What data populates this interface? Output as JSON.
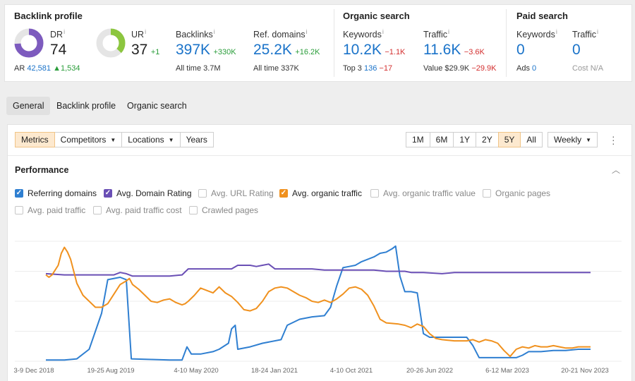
{
  "summary": {
    "backlink_profile": {
      "title": "Backlink profile",
      "dr": {
        "label": "DR",
        "sup": "i",
        "value": "74",
        "fraction": 0.74,
        "color": "#7d5bbe"
      },
      "ar": {
        "label": "AR",
        "value": "42,581",
        "delta": "▲1,534"
      },
      "ur": {
        "label": "UR",
        "sup": "i",
        "value": "37",
        "delta": "+1",
        "fraction": 0.37,
        "color": "#8cc63f"
      },
      "backlinks": {
        "label": "Backlinks",
        "sup": "i",
        "value": "397K",
        "delta": "+330K",
        "alltime_label": "All time",
        "alltime_value": "3.7M"
      },
      "ref_domains": {
        "label": "Ref. domains",
        "sup": "i",
        "value": "25.2K",
        "delta": "+16.2K",
        "alltime_label": "All time",
        "alltime_value": "337K"
      }
    },
    "organic_search": {
      "title": "Organic search",
      "keywords": {
        "label": "Keywords",
        "sup": "i",
        "value": "10.2K",
        "delta": "−1.1K",
        "top3_label": "Top 3",
        "top3_value": "136",
        "top3_delta": "−17"
      },
      "traffic": {
        "label": "Traffic",
        "sup": "i",
        "value": "11.6K",
        "delta": "−3.6K",
        "value_label": "Value",
        "value_value": "$29.9K",
        "value_delta": "−29.9K"
      }
    },
    "paid_search": {
      "title": "Paid search",
      "keywords": {
        "label": "Keywords",
        "sup": "i",
        "value": "0",
        "ads_label": "Ads",
        "ads_value": "0"
      },
      "traffic": {
        "label": "Traffic",
        "sup": "i",
        "value": "0",
        "cost_label": "Cost",
        "cost_value": "N/A"
      }
    }
  },
  "tabs": [
    {
      "label": "General",
      "active": true
    },
    {
      "label": "Backlink profile",
      "active": false
    },
    {
      "label": "Organic search",
      "active": false
    }
  ],
  "toolbar": {
    "left": [
      {
        "label": "Metrics",
        "active": true,
        "dropdown": false
      },
      {
        "label": "Competitors",
        "active": false,
        "dropdown": true
      },
      {
        "label": "Locations",
        "active": false,
        "dropdown": true
      },
      {
        "label": "Years",
        "active": false,
        "dropdown": false
      }
    ],
    "ranges": [
      {
        "label": "1M",
        "active": false
      },
      {
        "label": "6M",
        "active": false
      },
      {
        "label": "1Y",
        "active": false
      },
      {
        "label": "2Y",
        "active": false
      },
      {
        "label": "5Y",
        "active": true
      },
      {
        "label": "All",
        "active": false
      }
    ],
    "interval": "Weekly"
  },
  "performance": {
    "title": "Performance",
    "checkboxes": [
      {
        "label": "Referring domains",
        "checked": true,
        "color": "#2f7fd1"
      },
      {
        "label": "Avg. Domain Rating",
        "checked": true,
        "color": "#6a4fb5"
      },
      {
        "label": "Avg. URL Rating",
        "checked": false
      },
      {
        "label": "Avg. organic traffic",
        "checked": true,
        "color": "#f0911e"
      },
      {
        "label": "Avg. organic traffic value",
        "checked": false
      },
      {
        "label": "Organic pages",
        "checked": false
      },
      {
        "label": "Avg. paid traffic",
        "checked": false
      },
      {
        "label": "Avg. paid traffic cost",
        "checked": false
      },
      {
        "label": "Crawled pages",
        "checked": false
      }
    ]
  },
  "chart_data": {
    "type": "line",
    "x_tick_labels": [
      "3-9 Dec 2018",
      "19-25 Aug 2019",
      "4-10 May 2020",
      "18-24 Jan 2021",
      "4-10 Oct 2021",
      "20-26 Jun 2022",
      "6-12 Mar 2023",
      "20-21 Nov 2023"
    ],
    "y_range": [
      0,
      100
    ],
    "grid": true,
    "series": [
      {
        "name": "Referring domains",
        "color": "#2f7fd1",
        "points": [
          [
            0,
            1
          ],
          [
            3,
            1
          ],
          [
            5,
            2
          ],
          [
            7,
            10
          ],
          [
            9,
            40
          ],
          [
            10,
            68
          ],
          [
            12,
            70
          ],
          [
            13,
            68
          ],
          [
            13.8,
            2
          ],
          [
            20,
            1
          ],
          [
            22,
            1
          ],
          [
            22.8,
            12
          ],
          [
            23.5,
            6
          ],
          [
            25,
            6
          ],
          [
            27,
            8
          ],
          [
            28,
            10
          ],
          [
            29.5,
            15
          ],
          [
            30,
            27
          ],
          [
            30.6,
            30
          ],
          [
            31,
            10
          ],
          [
            33,
            12
          ],
          [
            35,
            15
          ],
          [
            38,
            18
          ],
          [
            39,
            30
          ],
          [
            41,
            35
          ],
          [
            43,
            37
          ],
          [
            45,
            38
          ],
          [
            46,
            45
          ],
          [
            47,
            63
          ],
          [
            48,
            78
          ],
          [
            49,
            79
          ],
          [
            50,
            80
          ],
          [
            51,
            83
          ],
          [
            53,
            87
          ],
          [
            54,
            90
          ],
          [
            55,
            91
          ],
          [
            56,
            94
          ],
          [
            56.5,
            96
          ],
          [
            57.2,
            71
          ],
          [
            58,
            58
          ],
          [
            59,
            58
          ],
          [
            60,
            57
          ],
          [
            61,
            23
          ],
          [
            62,
            20
          ],
          [
            64,
            20
          ],
          [
            66,
            20
          ],
          [
            68,
            20
          ],
          [
            69,
            13
          ],
          [
            70,
            3
          ],
          [
            72,
            3
          ],
          [
            74,
            3
          ],
          [
            76,
            3
          ],
          [
            77,
            5
          ],
          [
            78,
            8
          ],
          [
            80,
            8
          ],
          [
            82,
            9
          ],
          [
            84,
            9
          ],
          [
            86,
            10
          ],
          [
            88,
            10
          ]
        ]
      },
      {
        "name": "Avg. Domain Rating",
        "color": "#6a4fb5",
        "points": [
          [
            0,
            73
          ],
          [
            3,
            72
          ],
          [
            6,
            72
          ],
          [
            9,
            72
          ],
          [
            11,
            72
          ],
          [
            12,
            74
          ],
          [
            13,
            73
          ],
          [
            14,
            71
          ],
          [
            17,
            71
          ],
          [
            20,
            71
          ],
          [
            22,
            72
          ],
          [
            23,
            77
          ],
          [
            25,
            77
          ],
          [
            30,
            77
          ],
          [
            31,
            80
          ],
          [
            33,
            80
          ],
          [
            34,
            79
          ],
          [
            35,
            80
          ],
          [
            36,
            81
          ],
          [
            37,
            77
          ],
          [
            40,
            77
          ],
          [
            43,
            77
          ],
          [
            45,
            76
          ],
          [
            50,
            76
          ],
          [
            53,
            76
          ],
          [
            55,
            75
          ],
          [
            56,
            75
          ],
          [
            58,
            75
          ],
          [
            59,
            74
          ],
          [
            61,
            74
          ],
          [
            64,
            73
          ],
          [
            66,
            74
          ],
          [
            70,
            74
          ],
          [
            75,
            74
          ],
          [
            80,
            74
          ],
          [
            84,
            74
          ],
          [
            88,
            74
          ]
        ]
      },
      {
        "name": "Avg. organic traffic",
        "color": "#f0911e",
        "points": [
          [
            0,
            72
          ],
          [
            0.5,
            70
          ],
          [
            1,
            72
          ],
          [
            2,
            80
          ],
          [
            2.5,
            90
          ],
          [
            3,
            95
          ],
          [
            3.5,
            91
          ],
          [
            4,
            85
          ],
          [
            4.5,
            75
          ],
          [
            5,
            65
          ],
          [
            6,
            55
          ],
          [
            7,
            50
          ],
          [
            8,
            45
          ],
          [
            9,
            45
          ],
          [
            10,
            48
          ],
          [
            11,
            56
          ],
          [
            12,
            64
          ],
          [
            13,
            67
          ],
          [
            13.5,
            69
          ],
          [
            14,
            64
          ],
          [
            15,
            60
          ],
          [
            16,
            55
          ],
          [
            17,
            50
          ],
          [
            18,
            49
          ],
          [
            19,
            51
          ],
          [
            20,
            52
          ],
          [
            21,
            49
          ],
          [
            22,
            47
          ],
          [
            22.5,
            48
          ],
          [
            23,
            50
          ],
          [
            24,
            55
          ],
          [
            25,
            61
          ],
          [
            26,
            59
          ],
          [
            27,
            57
          ],
          [
            28,
            62
          ],
          [
            29,
            57
          ],
          [
            30,
            54
          ],
          [
            31,
            49
          ],
          [
            32,
            43
          ],
          [
            33,
            42
          ],
          [
            34,
            44
          ],
          [
            35,
            50
          ],
          [
            36,
            58
          ],
          [
            37,
            61
          ],
          [
            38,
            62
          ],
          [
            39,
            61
          ],
          [
            40,
            58
          ],
          [
            41,
            55
          ],
          [
            42,
            53
          ],
          [
            43,
            50
          ],
          [
            44,
            49
          ],
          [
            45,
            51
          ],
          [
            46,
            49
          ],
          [
            47,
            52
          ],
          [
            48,
            56
          ],
          [
            49,
            61
          ],
          [
            50,
            62
          ],
          [
            51,
            60
          ],
          [
            52,
            55
          ],
          [
            53,
            46
          ],
          [
            54,
            35
          ],
          [
            55,
            32
          ],
          [
            57,
            31
          ],
          [
            58,
            30
          ],
          [
            59,
            28
          ],
          [
            60,
            31
          ],
          [
            61,
            29
          ],
          [
            62,
            23
          ],
          [
            63,
            19
          ],
          [
            64,
            18
          ],
          [
            66,
            17
          ],
          [
            68,
            17
          ],
          [
            69,
            18
          ],
          [
            70,
            16
          ],
          [
            71,
            18
          ],
          [
            72,
            17
          ],
          [
            73,
            15
          ],
          [
            74,
            9
          ],
          [
            75,
            4
          ],
          [
            76,
            10
          ],
          [
            77,
            12
          ],
          [
            78,
            11
          ],
          [
            79,
            13
          ],
          [
            80,
            12
          ],
          [
            81,
            12
          ],
          [
            82,
            13
          ],
          [
            83,
            12
          ],
          [
            84,
            11
          ],
          [
            85,
            11
          ],
          [
            86,
            12
          ],
          [
            87,
            12
          ],
          [
            88,
            12
          ]
        ]
      }
    ]
  }
}
